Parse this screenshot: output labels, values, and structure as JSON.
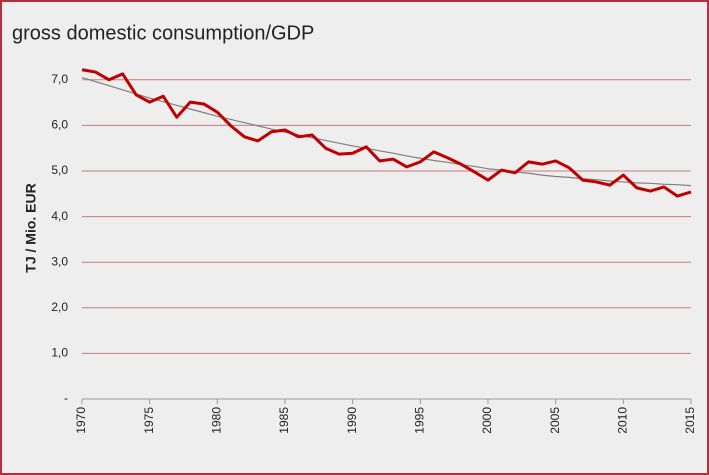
{
  "chart_data": {
    "type": "line",
    "title": "gross domestic consumption/GDP",
    "y_label": "TJ / Mio. EUR",
    "x": [
      1970,
      1971,
      1972,
      1973,
      1974,
      1975,
      1976,
      1977,
      1978,
      1979,
      1980,
      1981,
      1982,
      1983,
      1984,
      1985,
      1986,
      1987,
      1988,
      1989,
      1990,
      1991,
      1992,
      1993,
      1994,
      1995,
      1996,
      1997,
      1998,
      1999,
      2000,
      2001,
      2002,
      2003,
      2004,
      2005,
      2006,
      2007,
      2008,
      2009,
      2010,
      2011,
      2012,
      2013,
      2014,
      2015
    ],
    "series": [
      {
        "color": "#c00000",
        "values": [
          7.22,
          7.17,
          7.0,
          7.13,
          6.67,
          6.51,
          6.64,
          6.18,
          6.51,
          6.47,
          6.29,
          5.99,
          5.75,
          5.66,
          5.86,
          5.9,
          5.75,
          5.79,
          5.5,
          5.37,
          5.39,
          5.53,
          5.22,
          5.26,
          5.09,
          5.2,
          5.42,
          5.29,
          5.15,
          4.98,
          4.8,
          5.02,
          4.96,
          5.2,
          5.15,
          5.22,
          5.07,
          4.8,
          4.76,
          4.69,
          4.91,
          4.63,
          4.56,
          4.65,
          4.45,
          4.54
        ]
      },
      {
        "color": "#808080",
        "values": [
          7.05,
          6.96,
          6.87,
          6.78,
          6.69,
          6.6,
          6.52,
          6.44,
          6.36,
          6.28,
          6.2,
          6.13,
          6.06,
          5.99,
          5.92,
          5.85,
          5.79,
          5.73,
          5.67,
          5.61,
          5.55,
          5.5,
          5.44,
          5.39,
          5.33,
          5.28,
          5.23,
          5.19,
          5.14,
          5.1,
          5.05,
          5.02,
          4.98,
          4.95,
          4.91,
          4.88,
          4.86,
          4.83,
          4.81,
          4.78,
          4.76,
          4.74,
          4.73,
          4.71,
          4.7,
          4.68
        ]
      }
    ],
    "xlim": [
      1970,
      2015
    ],
    "xticks": [
      1970,
      1975,
      1980,
      1985,
      1990,
      1995,
      2000,
      2005,
      2010,
      2015
    ],
    "ylim": [
      0,
      7.5
    ],
    "yticks": [
      {
        "value": 0,
        "label": "-"
      },
      {
        "value": 1,
        "label": "1,0"
      },
      {
        "value": 2,
        "label": "2,0"
      },
      {
        "value": 3,
        "label": "3,0"
      },
      {
        "value": 4,
        "label": "4,0"
      },
      {
        "value": 5,
        "label": "5,0"
      },
      {
        "value": 6,
        "label": "6,0"
      },
      {
        "value": 7,
        "label": "7,0"
      }
    ],
    "grid": true
  }
}
